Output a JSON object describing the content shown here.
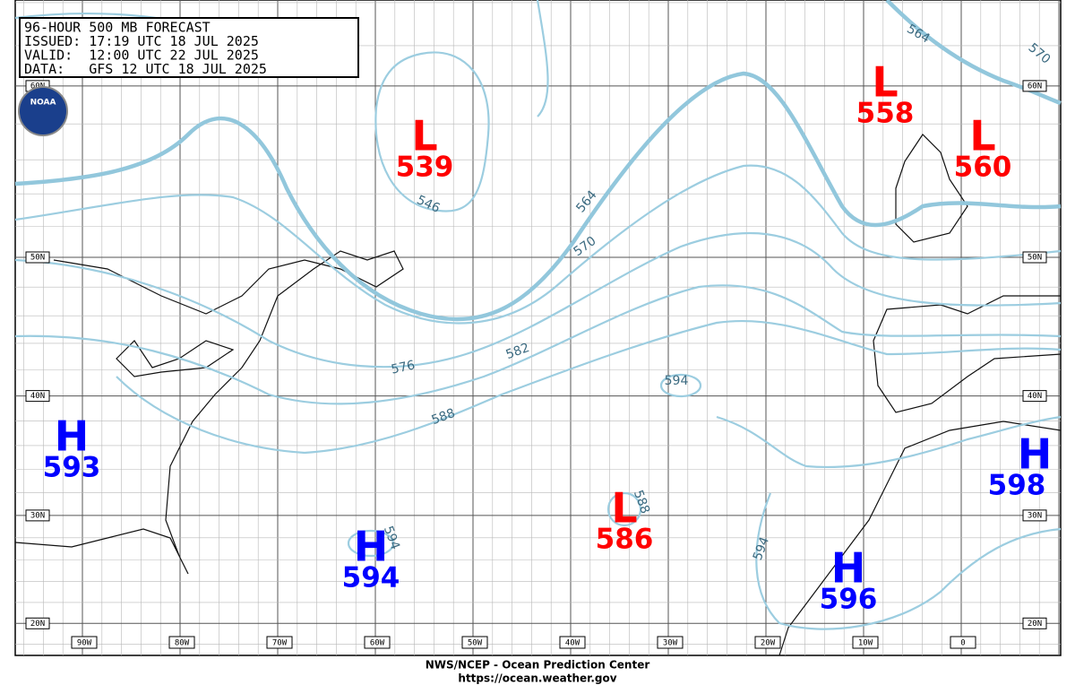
{
  "header": {
    "lines": [
      "96-HOUR 500 MB FORECAST",
      "ISSUED: 17:19 UTC 18 JUL 2025",
      "VALID:  12:00 UTC 22 JUL 2025",
      "DATA:   GFS 12 UTC 18 JUL 2025"
    ]
  },
  "logo_text": "NOAA",
  "centers": [
    {
      "letter": "L",
      "value": "539",
      "color": "#ff0000"
    },
    {
      "letter": "L",
      "value": "558",
      "color": "#ff0000"
    },
    {
      "letter": "L",
      "value": "560",
      "color": "#ff0000"
    },
    {
      "letter": "H",
      "value": "593",
      "color": "#0000ff"
    },
    {
      "letter": "H",
      "value": "594",
      "color": "#0000ff"
    },
    {
      "letter": "L",
      "value": "586",
      "color": "#ff0000"
    },
    {
      "letter": "H",
      "value": "596",
      "color": "#0000ff"
    },
    {
      "letter": "H",
      "value": "598",
      "color": "#0000ff"
    }
  ],
  "contour_labels": [
    "546",
    "564",
    "564",
    "570",
    "570",
    "576",
    "582",
    "588",
    "594",
    "594",
    "588",
    "594"
  ],
  "lat_labels": [
    "60N",
    "50N",
    "40N",
    "30N",
    "20N"
  ],
  "lon_labels": [
    "90W",
    "80W",
    "70W",
    "60W",
    "50W",
    "40W",
    "30W",
    "20W",
    "10W",
    "0"
  ],
  "footer": {
    "line1": "NWS/NCEP - Ocean Prediction Center",
    "line2": "https://ocean.weather.gov"
  }
}
